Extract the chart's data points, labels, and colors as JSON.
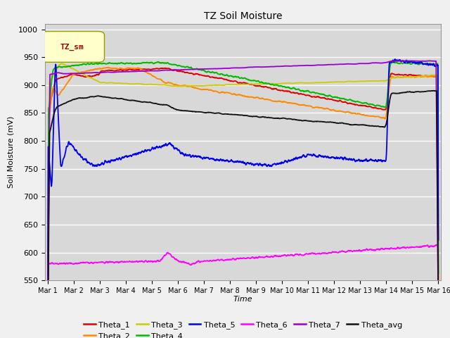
{
  "title": "TZ Soil Moisture",
  "xlabel": "Time",
  "ylabel": "Soil Moisture (mV)",
  "ylim": [
    550,
    1010
  ],
  "yticks": [
    550,
    600,
    650,
    700,
    750,
    800,
    850,
    900,
    950,
    1000
  ],
  "legend_label": "TZ_sm",
  "series_colors": {
    "Theta_1": "#dd0000",
    "Theta_2": "#ff8800",
    "Theta_3": "#cccc00",
    "Theta_4": "#00bb00",
    "Theta_5": "#0000ee",
    "Theta_6": "#ff00ff",
    "Theta_7": "#9900cc",
    "Theta_avg": "#111111"
  },
  "bg_color": "#d8d8d8",
  "plot_bg": "#d8d8d8",
  "fig_bg": "#f0f0f0"
}
